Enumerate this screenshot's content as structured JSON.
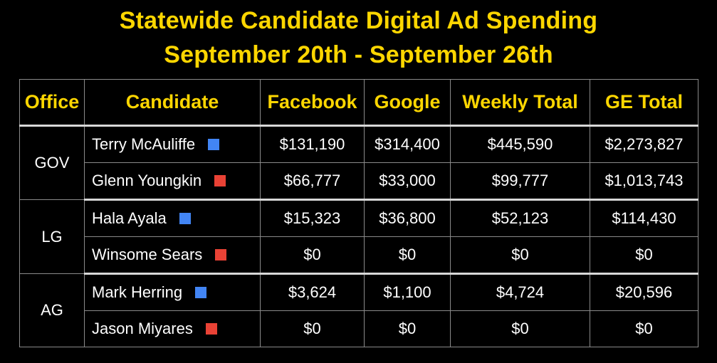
{
  "title": {
    "line1": "Statewide Candidate Digital Ad Spending",
    "line2": "September 20th - September 26th"
  },
  "colors": {
    "title": "#fdd600",
    "democrat": "#4285f4",
    "republican": "#e94235",
    "background": "#000000"
  },
  "headers": {
    "office": "Office",
    "candidate": "Candidate",
    "facebook": "Facebook",
    "google": "Google",
    "weekly_total": "Weekly Total",
    "ge_total": "GE Total"
  },
  "groups": [
    {
      "office": "GOV",
      "rows": [
        {
          "candidate": "Terry McAuliffe",
          "party": "democrat",
          "facebook": "$131,190",
          "google": "$314,400",
          "weekly_total": "$445,590",
          "ge_total": "$2,273,827"
        },
        {
          "candidate": "Glenn Youngkin",
          "party": "republican",
          "facebook": "$66,777",
          "google": "$33,000",
          "weekly_total": "$99,777",
          "ge_total": "$1,013,743"
        }
      ]
    },
    {
      "office": "LG",
      "rows": [
        {
          "candidate": "Hala Ayala",
          "party": "democrat",
          "facebook": "$15,323",
          "google": "$36,800",
          "weekly_total": "$52,123",
          "ge_total": "$114,430"
        },
        {
          "candidate": "Winsome Sears",
          "party": "republican",
          "facebook": "$0",
          "google": "$0",
          "weekly_total": "$0",
          "ge_total": "$0"
        }
      ]
    },
    {
      "office": "AG",
      "rows": [
        {
          "candidate": "Mark Herring",
          "party": "democrat",
          "facebook": "$3,624",
          "google": "$1,100",
          "weekly_total": "$4,724",
          "ge_total": "$20,596"
        },
        {
          "candidate": "Jason Miyares",
          "party": "republican",
          "facebook": "$0",
          "google": "$0",
          "weekly_total": "$0",
          "ge_total": "$0"
        }
      ]
    }
  ]
}
